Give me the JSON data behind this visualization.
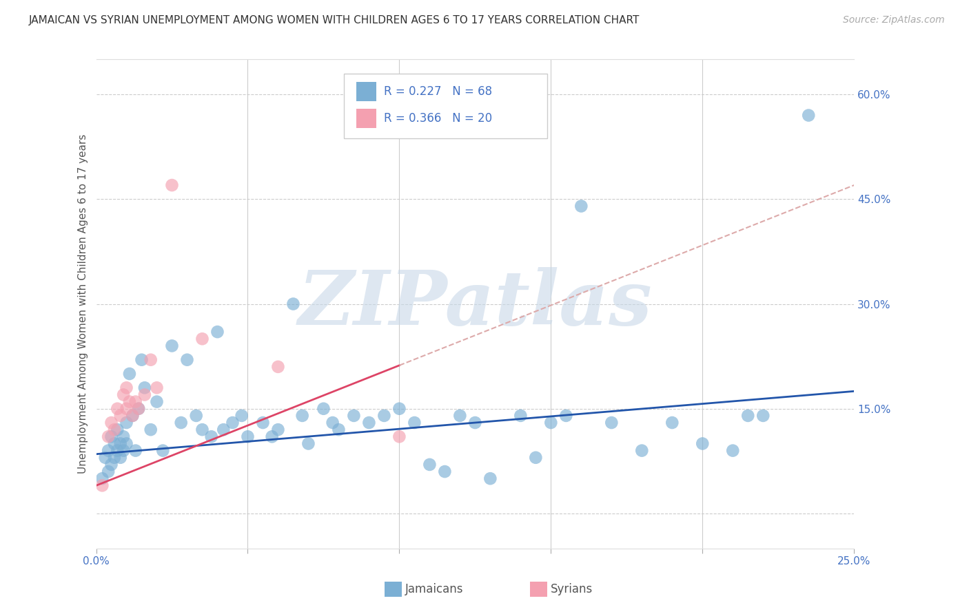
{
  "title": "JAMAICAN VS SYRIAN UNEMPLOYMENT AMONG WOMEN WITH CHILDREN AGES 6 TO 17 YEARS CORRELATION CHART",
  "source": "Source: ZipAtlas.com",
  "ylabel": "Unemployment Among Women with Children Ages 6 to 17 years",
  "xlim": [
    0.0,
    0.25
  ],
  "ylim": [
    -0.05,
    0.65
  ],
  "x_ticks": [
    0.0,
    0.05,
    0.1,
    0.15,
    0.2,
    0.25
  ],
  "y_ticks_right": [
    0.0,
    0.15,
    0.3,
    0.45,
    0.6
  ],
  "y_tick_labels_right": [
    "",
    "15.0%",
    "30.0%",
    "45.0%",
    "60.0%"
  ],
  "grid_color": "#cccccc",
  "background_color": "#ffffff",
  "watermark_text": "ZIPatlas",
  "watermark_color": "#c8d8e8",
  "jamaicans_color": "#7bafd4",
  "syrians_color": "#f4a0b0",
  "jamaicans_line_color": "#2255aa",
  "syrians_line_color": "#dd4466",
  "syrians_dash_color": "#ddaaaa",
  "legend_r1": "R = 0.227",
  "legend_n1": "N = 68",
  "legend_r2": "R = 0.366",
  "legend_n2": "N = 20",
  "legend_label1": "Jamaicans",
  "legend_label2": "Syrians",
  "jamaicans_x": [
    0.002,
    0.003,
    0.004,
    0.004,
    0.005,
    0.005,
    0.006,
    0.006,
    0.007,
    0.007,
    0.008,
    0.008,
    0.009,
    0.009,
    0.01,
    0.01,
    0.011,
    0.012,
    0.013,
    0.014,
    0.015,
    0.016,
    0.018,
    0.02,
    0.022,
    0.025,
    0.028,
    0.03,
    0.033,
    0.035,
    0.038,
    0.04,
    0.042,
    0.045,
    0.048,
    0.05,
    0.055,
    0.058,
    0.06,
    0.065,
    0.068,
    0.07,
    0.075,
    0.078,
    0.08,
    0.085,
    0.09,
    0.095,
    0.1,
    0.105,
    0.11,
    0.115,
    0.12,
    0.125,
    0.13,
    0.14,
    0.145,
    0.15,
    0.155,
    0.16,
    0.17,
    0.18,
    0.19,
    0.2,
    0.21,
    0.215,
    0.22,
    0.235
  ],
  "jamaicans_y": [
    0.05,
    0.08,
    0.06,
    0.09,
    0.07,
    0.11,
    0.08,
    0.1,
    0.09,
    0.12,
    0.08,
    0.1,
    0.09,
    0.11,
    0.1,
    0.13,
    0.2,
    0.14,
    0.09,
    0.15,
    0.22,
    0.18,
    0.12,
    0.16,
    0.09,
    0.24,
    0.13,
    0.22,
    0.14,
    0.12,
    0.11,
    0.26,
    0.12,
    0.13,
    0.14,
    0.11,
    0.13,
    0.11,
    0.12,
    0.3,
    0.14,
    0.1,
    0.15,
    0.13,
    0.12,
    0.14,
    0.13,
    0.14,
    0.15,
    0.13,
    0.07,
    0.06,
    0.14,
    0.13,
    0.05,
    0.14,
    0.08,
    0.13,
    0.14,
    0.44,
    0.13,
    0.09,
    0.13,
    0.1,
    0.09,
    0.14,
    0.14,
    0.57
  ],
  "syrians_x": [
    0.002,
    0.004,
    0.005,
    0.006,
    0.007,
    0.008,
    0.009,
    0.01,
    0.01,
    0.011,
    0.012,
    0.013,
    0.014,
    0.016,
    0.018,
    0.02,
    0.025,
    0.035,
    0.06,
    0.1
  ],
  "syrians_y": [
    0.04,
    0.11,
    0.13,
    0.12,
    0.15,
    0.14,
    0.17,
    0.15,
    0.18,
    0.16,
    0.14,
    0.16,
    0.15,
    0.17,
    0.22,
    0.18,
    0.47,
    0.25,
    0.21,
    0.11
  ],
  "title_fontsize": 11,
  "source_fontsize": 10,
  "ylabel_fontsize": 11,
  "tick_fontsize": 11,
  "legend_fontsize": 12,
  "marker_size": 180
}
